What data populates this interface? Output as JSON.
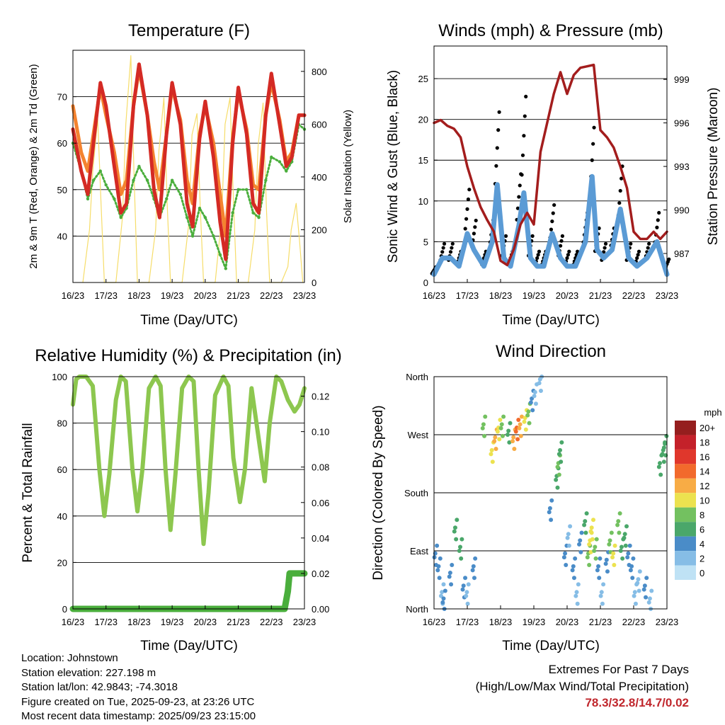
{
  "panels": {
    "temperature": {
      "title": "Temperature (F)",
      "ylabel_left": "2m & 9m T (Red, Orange) & 2m Td (Green)",
      "ylabel_right": "Solar Insolation (Yellow)",
      "xlabel": "Time (Day/UTC)",
      "left_ticks": [
        "40",
        "50",
        "60",
        "70"
      ],
      "right_ticks": [
        "0",
        "200",
        "400",
        "600",
        "800"
      ]
    },
    "winds": {
      "title": "Winds (mph) & Pressure (mb)",
      "ylabel_left": "Sonic Wind & Gust (Blue, Black)",
      "ylabel_right": "Station Pressure (Maroon)",
      "xlabel": "Time (Day/UTC)",
      "left_ticks": [
        "0",
        "5",
        "10",
        "15",
        "20",
        "25"
      ],
      "right_ticks": [
        "987",
        "990",
        "993",
        "996",
        "999"
      ]
    },
    "humidity": {
      "title": "Relative Humidity (%) & Precipitation (in)",
      "ylabel_left": "Percent & Total Rainfall",
      "xlabel": "Time (Day/UTC)",
      "left_ticks": [
        "0",
        "20",
        "40",
        "60",
        "80",
        "100"
      ],
      "right_ticks": [
        "0.00",
        "0.02",
        "0.04",
        "0.06",
        "0.08",
        "0.10",
        "0.12"
      ]
    },
    "direction": {
      "title": "Wind Direction",
      "ylabel_left": "Direction (Colored By Speed)",
      "xlabel": "Time (Day/UTC)",
      "dir_ticks": [
        "North",
        "East",
        "South",
        "West",
        "North"
      ],
      "legend_title": "mph",
      "legend_labels": [
        "0",
        "2",
        "4",
        "6",
        "8",
        "10",
        "12",
        "14",
        "16",
        "18",
        "20+"
      ]
    }
  },
  "time_ticks": [
    "16/23",
    "17/23",
    "18/23",
    "19/23",
    "20/23",
    "21/23",
    "22/23",
    "23/23"
  ],
  "footer": {
    "location": "Location: Johnstown",
    "elevation": "Station elevation: 227.198 m",
    "latlon": "Station lat/lon: 42.9843; -74.3018",
    "created": "Figure created on Tue, 2025-09-23, at 23:26 UTC",
    "recent": "Most recent data timestamp: 2025/09/23 23:15:00"
  },
  "extremes": {
    "title": "Extremes For Past 7 Days",
    "subtitle": "(High/Low/Max Wind/Total Precipitation)",
    "value": "78.3/32.8/14.7/0.02"
  },
  "colors": {
    "temp2m": "#d42a24",
    "temp9m": "#f4832f",
    "dewpoint": "#4aae3c",
    "solar": "#f6dd6a",
    "wind": "#5b9bd5",
    "gust": "#000000",
    "pressure": "#a31d1d",
    "rh": "#8dc74f",
    "precip": "#4aae3c",
    "speed_scale": [
      "#bfe2f5",
      "#86bde6",
      "#4a8cc8",
      "#4aa76a",
      "#73c160",
      "#ece24f",
      "#f8ac45",
      "#f26a2c",
      "#e0372c",
      "#c4212a",
      "#951e1e"
    ]
  },
  "chart_data": [
    {
      "type": "line",
      "title": "Temperature (F)",
      "xlabel": "Time (Day/UTC)",
      "ylabel": "2m & 9m T (Red, Orange) & 2m Td (Green)",
      "y2label": "Solar Insolation (Yellow)",
      "xlim": [
        0,
        7
      ],
      "ylim": [
        30,
        80
      ],
      "y2lim": [
        0,
        880
      ],
      "series": [
        {
          "name": "2m T",
          "axis": "left",
          "x": [
            0,
            0.25,
            0.45,
            0.62,
            0.83,
            1.0,
            1.25,
            1.45,
            1.62,
            1.83,
            2.0,
            2.25,
            2.45,
            2.62,
            2.83,
            3.0,
            3.25,
            3.45,
            3.62,
            3.83,
            4.0,
            4.25,
            4.45,
            4.62,
            4.83,
            5.0,
            5.25,
            5.45,
            5.62,
            5.83,
            6.0,
            6.25,
            6.45,
            6.62,
            6.83,
            7.0
          ],
          "y": [
            63,
            54,
            49,
            60,
            73,
            68,
            55,
            45,
            47,
            68,
            77,
            66,
            50,
            44,
            62,
            73,
            64,
            47,
            42,
            61,
            69,
            57,
            43,
            35,
            60,
            72,
            62,
            47,
            45,
            66,
            75,
            64,
            55,
            57,
            66,
            66
          ]
        },
        {
          "name": "9m T",
          "axis": "left",
          "x": [
            0,
            0.25,
            0.45,
            0.62,
            0.83,
            1.0,
            1.25,
            1.45,
            1.62,
            1.83,
            2.0,
            2.25,
            2.45,
            2.62,
            2.83,
            3.0,
            3.25,
            3.45,
            3.62,
            3.83,
            4.0,
            4.25,
            4.45,
            4.62,
            4.83,
            5.0,
            5.25,
            5.45,
            5.62,
            5.83,
            6.0,
            6.25,
            6.45,
            6.62,
            6.83,
            7.0
          ],
          "y": [
            68,
            58,
            54,
            62,
            72,
            66,
            58,
            49,
            52,
            68,
            76,
            66,
            56,
            50,
            62,
            72,
            65,
            52,
            47,
            62,
            68,
            60,
            49,
            40,
            61,
            71,
            63,
            51,
            50,
            66,
            73,
            65,
            56,
            58,
            66,
            66
          ]
        },
        {
          "name": "2m Td",
          "axis": "left",
          "x": [
            0,
            0.25,
            0.45,
            0.62,
            0.83,
            1.0,
            1.25,
            1.45,
            1.62,
            1.83,
            2.0,
            2.25,
            2.45,
            2.62,
            2.83,
            3.0,
            3.25,
            3.45,
            3.62,
            3.83,
            4.0,
            4.25,
            4.45,
            4.62,
            4.83,
            5.0,
            5.25,
            5.45,
            5.62,
            5.83,
            6.0,
            6.25,
            6.45,
            6.62,
            6.83,
            7.0
          ],
          "y": [
            60,
            54,
            48,
            52,
            54,
            51,
            48,
            44,
            46,
            52,
            55,
            52,
            48,
            44,
            48,
            52,
            49,
            44,
            40,
            46,
            44,
            40,
            36,
            33,
            45,
            50,
            50,
            45,
            44,
            52,
            57,
            56,
            54,
            56,
            64,
            63
          ]
        },
        {
          "name": "Solar Insolation",
          "axis": "right",
          "x": [
            0.3,
            0.5,
            0.6,
            0.75,
            0.85,
            0.95,
            1.3,
            1.5,
            1.6,
            1.75,
            1.85,
            1.95,
            2.3,
            2.5,
            2.6,
            2.75,
            2.85,
            2.95,
            3.3,
            3.5,
            3.6,
            3.75,
            3.85,
            3.95,
            4.3,
            4.5,
            4.6,
            4.75,
            4.85,
            4.95,
            5.3,
            5.5,
            5.6,
            5.75,
            5.85,
            5.95,
            6.3,
            6.5,
            6.6,
            6.75,
            6.85,
            6.95
          ],
          "y": [
            0,
            200,
            420,
            620,
            300,
            0,
            0,
            250,
            600,
            860,
            400,
            0,
            0,
            200,
            500,
            700,
            300,
            0,
            0,
            220,
            560,
            640,
            280,
            0,
            0,
            250,
            600,
            700,
            320,
            0,
            0,
            200,
            520,
            680,
            280,
            0,
            0,
            60,
            200,
            300,
            160,
            0
          ]
        }
      ]
    },
    {
      "type": "line",
      "title": "Winds (mph) & Pressure (mb)",
      "xlabel": "Time (Day/UTC)",
      "ylabel": "Sonic Wind & Gust (Blue, Black)",
      "y2label": "Station Pressure (Maroon)",
      "xlim": [
        0,
        7
      ],
      "ylim": [
        0,
        29
      ],
      "y2lim": [
        985.0,
        1001.3
      ],
      "series": [
        {
          "name": "Sonic Wind",
          "axis": "left",
          "x": [
            0,
            0.25,
            0.5,
            0.75,
            1.0,
            1.2,
            1.5,
            1.75,
            1.9,
            2.1,
            2.3,
            2.55,
            2.7,
            2.9,
            3.1,
            3.3,
            3.55,
            3.8,
            4.0,
            4.25,
            4.55,
            4.75,
            4.9,
            5.1,
            5.35,
            5.6,
            5.85,
            6.1,
            6.4,
            6.7,
            7.0
          ],
          "y": [
            1,
            3,
            3,
            2,
            6,
            4,
            2,
            5,
            12,
            3,
            2,
            7,
            11,
            3,
            2,
            2,
            6,
            3,
            2,
            2,
            5,
            13,
            4,
            3,
            4,
            9,
            3,
            2,
            3,
            5,
            1
          ]
        },
        {
          "name": "Gust",
          "axis": "left",
          "x": [
            0,
            0.25,
            0.5,
            0.75,
            1.0,
            1.2,
            1.5,
            1.75,
            1.9,
            2.1,
            2.3,
            2.55,
            2.7,
            2.9,
            3.1,
            3.3,
            3.55,
            3.8,
            4.0,
            4.25,
            4.55,
            4.75,
            4.9,
            5.1,
            5.35,
            5.6,
            5.85,
            6.1,
            6.4,
            6.7,
            7.0
          ],
          "y": [
            2,
            5,
            5,
            4,
            12,
            8,
            4,
            9,
            22,
            6,
            4,
            14,
            24,
            6,
            4,
            4,
            10,
            6,
            4,
            4,
            9,
            20,
            7,
            5,
            7,
            15,
            5,
            4,
            5,
            9,
            3
          ]
        },
        {
          "name": "Station Pressure",
          "axis": "right",
          "x": [
            0,
            0.2,
            0.4,
            0.6,
            0.8,
            1.0,
            1.2,
            1.4,
            1.6,
            1.8,
            2.0,
            2.2,
            2.4,
            2.6,
            2.8,
            3.0,
            3.2,
            3.4,
            3.6,
            3.8,
            4.0,
            4.2,
            4.4,
            4.6,
            4.8,
            5.0,
            5.2,
            5.4,
            5.6,
            5.8,
            6.0,
            6.2,
            6.4,
            6.6,
            6.8,
            7.0
          ],
          "y": [
            996,
            996.2,
            995.8,
            995.6,
            995.0,
            993.0,
            991.5,
            990.2,
            989.3,
            988.5,
            986.5,
            986.2,
            987.3,
            989.0,
            989.8,
            989.0,
            994.0,
            996.0,
            998.0,
            999.5,
            998.0,
            999.3,
            999.8,
            999.9,
            1000.0,
            995.5,
            995.0,
            994.3,
            993.0,
            991.5,
            988.5,
            988.0,
            988.0,
            988.5,
            988.0,
            988.5
          ]
        }
      ]
    },
    {
      "type": "line",
      "title": "Relative Humidity (%) & Precipitation (in)",
      "xlabel": "Time (Day/UTC)",
      "ylabel": "Percent & Total Rainfall",
      "xlim": [
        0,
        7
      ],
      "ylim": [
        0,
        100
      ],
      "y2lim": [
        0,
        0.131
      ],
      "series": [
        {
          "name": "Relative Humidity",
          "axis": "left",
          "x": [
            0,
            0.1,
            0.2,
            0.4,
            0.6,
            0.8,
            0.95,
            1.1,
            1.3,
            1.45,
            1.6,
            1.8,
            1.95,
            2.1,
            2.3,
            2.5,
            2.65,
            2.8,
            2.95,
            3.1,
            3.3,
            3.5,
            3.65,
            3.8,
            3.95,
            4.1,
            4.3,
            4.55,
            4.7,
            4.85,
            5.05,
            5.2,
            5.4,
            5.65,
            5.8,
            5.95,
            6.15,
            6.3,
            6.5,
            6.7,
            6.85,
            7.0
          ],
          "y": [
            88,
            99,
            100,
            100,
            96,
            60,
            40,
            58,
            90,
            100,
            98,
            60,
            42,
            60,
            95,
            100,
            96,
            60,
            34,
            58,
            95,
            100,
            98,
            60,
            28,
            50,
            92,
            100,
            96,
            65,
            46,
            60,
            95,
            70,
            55,
            80,
            100,
            98,
            90,
            85,
            88,
            95
          ]
        },
        {
          "name": "Total Precipitation",
          "axis": "right",
          "x": [
            0,
            1,
            2,
            3,
            4,
            5,
            6.2,
            6.4,
            6.5,
            6.55,
            6.7,
            7.0
          ],
          "y": [
            0,
            0,
            0,
            0,
            0,
            0,
            0,
            0,
            0.01,
            0.02,
            0.02,
            0.02
          ]
        }
      ]
    },
    {
      "type": "scatter",
      "title": "Wind Direction",
      "xlabel": "Time (Day/UTC)",
      "ylabel": "Direction (Colored By Speed)",
      "xlim": [
        0,
        7
      ],
      "ylim": [
        0,
        360
      ],
      "color_scale": {
        "label": "mph",
        "ticks": [
          "0",
          "2",
          "4",
          "6",
          "8",
          "10",
          "12",
          "14",
          "16",
          "18",
          "20+"
        ]
      },
      "x": [
        0.05,
        0.15,
        0.25,
        0.3,
        0.5,
        0.65,
        0.8,
        0.9,
        1.0,
        1.2,
        1.5,
        1.75,
        1.85,
        1.95,
        2.05,
        2.25,
        2.4,
        2.5,
        2.6,
        2.75,
        2.85,
        2.95,
        3.05,
        3.2,
        3.5,
        3.7,
        3.75,
        3.8,
        3.95,
        4.05,
        4.2,
        4.3,
        4.4,
        4.55,
        4.65,
        4.7,
        4.75,
        4.85,
        4.95,
        5.05,
        5.2,
        5.3,
        5.4,
        5.55,
        5.65,
        5.75,
        5.85,
        5.95,
        6.05,
        6.15,
        6.35,
        6.5,
        6.8,
        6.9,
        6.95
      ],
      "y": [
        80,
        60,
        20,
        10,
        50,
        120,
        90,
        30,
        20,
        60,
        280,
        240,
        260,
        275,
        280,
        270,
        260,
        275,
        280,
        290,
        300,
        320,
        330,
        350,
        150,
        200,
        220,
        240,
        80,
        110,
        60,
        20,
        100,
        130,
        80,
        100,
        120,
        90,
        60,
        20,
        70,
        100,
        80,
        130,
        90,
        110,
        80,
        60,
        20,
        40,
        30,
        10,
        220,
        240,
        250
      ],
      "speed": [
        3,
        4,
        2,
        3,
        4,
        6,
        6,
        3,
        2,
        3,
        7,
        9,
        12,
        10,
        8,
        6,
        11,
        13,
        12,
        10,
        7,
        4,
        2,
        1,
        3,
        5,
        7,
        6,
        3,
        2,
        4,
        2,
        3,
        5,
        7,
        9,
        10,
        7,
        4,
        2,
        4,
        7,
        9,
        8,
        6,
        5,
        4,
        3,
        2,
        2,
        3,
        1,
        5,
        6,
        5
      ]
    }
  ]
}
